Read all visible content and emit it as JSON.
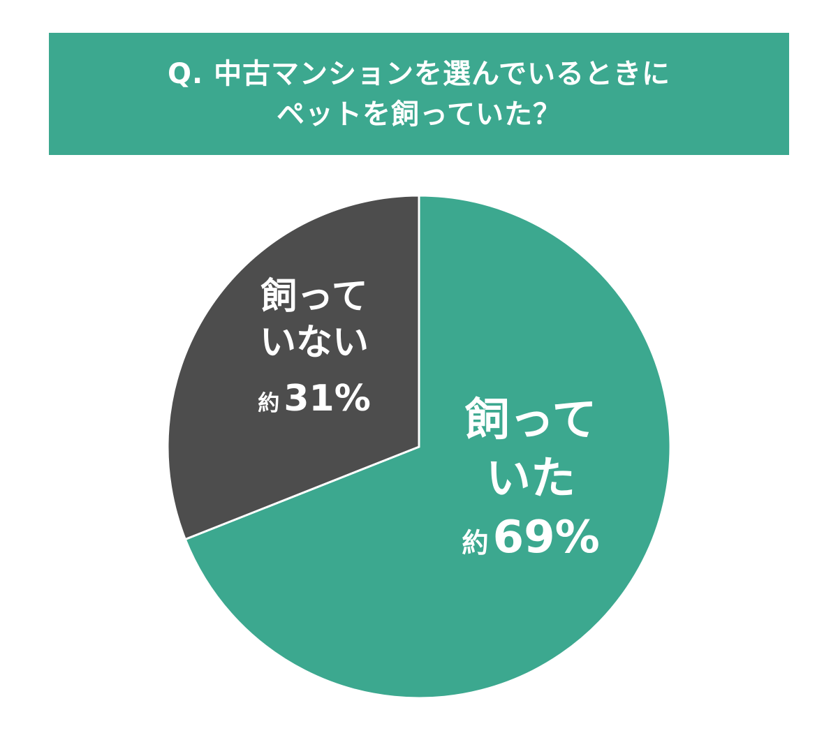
{
  "chart_data": {
    "type": "pie",
    "title_lines": [
      "Q. 中古マンションを選んでいるときに",
      "ペットを飼っていた？"
    ],
    "slices": [
      {
        "label_lines": [
          "飼って",
          "いた"
        ],
        "prefix": "約",
        "value": 69,
        "value_label": "69%",
        "color": "#3ca88f"
      },
      {
        "label_lines": [
          "飼って",
          "いない"
        ],
        "prefix": "約",
        "value": 31,
        "value_label": "31%",
        "color": "#4d4d4d"
      }
    ],
    "start": "12 o'clock",
    "direction": "clockwise"
  }
}
